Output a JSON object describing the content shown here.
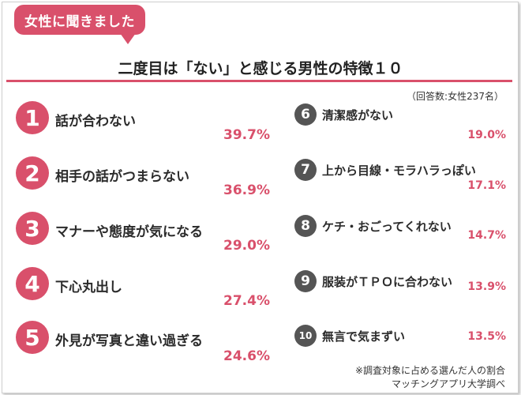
{
  "tag": "女性に聞きました",
  "title": "二度目は「ない」と感じる男性の特徴１０",
  "note": "（回答数:女性237名）",
  "left_items": [
    {
      "rank": "1",
      "label": "話が合わない",
      "percent": "39.7%"
    },
    {
      "rank": "2",
      "label": "相手の話がつまらない",
      "percent": "36.9%"
    },
    {
      "rank": "3",
      "label": "マナーや態度が気になる",
      "percent": "29.0%"
    },
    {
      "rank": "4",
      "label": "下心丸出し",
      "percent": "27.4%"
    },
    {
      "rank": "5",
      "label": "外見が写真と違い過ぎる",
      "percent": "24.6%"
    }
  ],
  "right_items": [
    {
      "rank": "6",
      "label": "清潔感がない",
      "percent": "19.0%"
    },
    {
      "rank": "7",
      "label": "上から目線・モラハラっぽい",
      "percent": "17.1%"
    },
    {
      "rank": "8",
      "label": "ケチ・おごってくれない",
      "percent": "14.7%"
    },
    {
      "rank": "9",
      "label": "服装がＴＰＯに合わない",
      "percent": "13.9%"
    },
    {
      "rank": "10",
      "label": "無言で気まずい",
      "percent": "13.5%"
    }
  ],
  "footer": {
    "line1": "※調査対象に占める選んだ人の割合",
    "line2": "マッチングアプリ大学調べ"
  },
  "colors": {
    "accent": "#d9506b",
    "dark_badge": "#555555",
    "text": "#2b2b2b"
  }
}
